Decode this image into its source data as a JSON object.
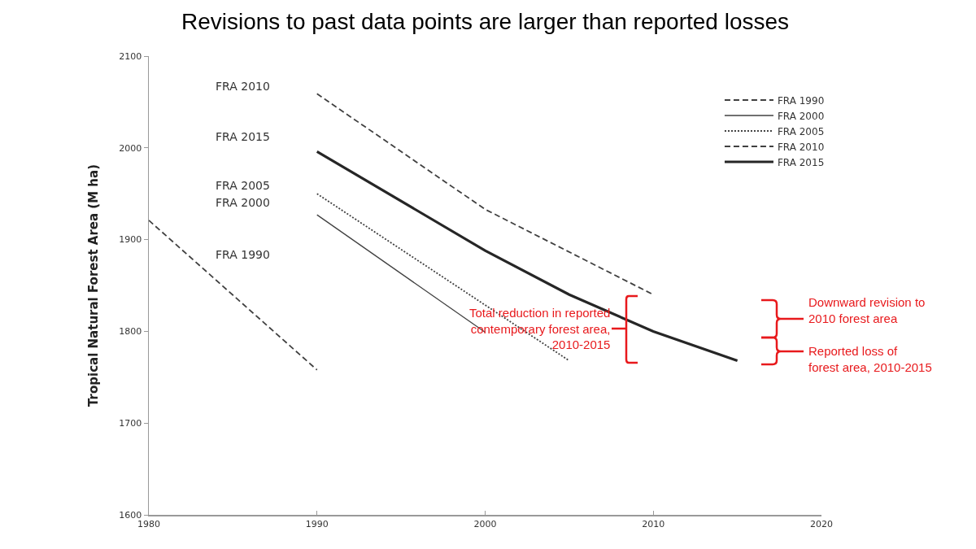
{
  "chart_data": {
    "type": "line",
    "title": "Revisions to past data points are larger than reported losses",
    "ylabel": "Tropical Natural Forest Area (M ha)",
    "xlim": [
      1980,
      2020
    ],
    "xticks": [
      1980,
      1990,
      2000,
      2010,
      2020
    ],
    "ylim": [
      1600,
      2100
    ],
    "yticks": [
      1600,
      1700,
      1800,
      1900,
      2000,
      2100
    ],
    "grid": false,
    "legend": "top right",
    "marker": "none",
    "series": [
      {
        "name": "FRA 1990",
        "color": "#404040",
        "line_style": "dashed",
        "x": [
          1980,
          1990
        ],
        "values": [
          1921,
          1758
        ]
      },
      {
        "name": "FRA 2000",
        "color": "#404040",
        "line_style": "solid",
        "x": [
          1990,
          2000
        ],
        "values": [
          1927,
          1799
        ]
      },
      {
        "name": "FRA 2005",
        "color": "#404040",
        "line_style": "dotted",
        "x": [
          1990,
          2005
        ],
        "values": [
          1950,
          1768
        ]
      },
      {
        "name": "FRA 2010",
        "color": "#404040",
        "line_style": "dashed",
        "x": [
          1990,
          2000,
          2010
        ],
        "values": [
          2059,
          1933,
          1840
        ]
      },
      {
        "name": "FRA 2015",
        "color": "#262626",
        "line_style": "solid",
        "x": [
          1990,
          2000,
          2005,
          2010,
          2015
        ],
        "values": [
          1996,
          1888,
          1840,
          1800,
          1768
        ]
      }
    ],
    "annotations": [
      "Total reduction in reported contemporary forest area, 2010-2015",
      "Downward revision to 2010 forest area",
      "Reported loss of forest area, 2010-2015"
    ]
  }
}
